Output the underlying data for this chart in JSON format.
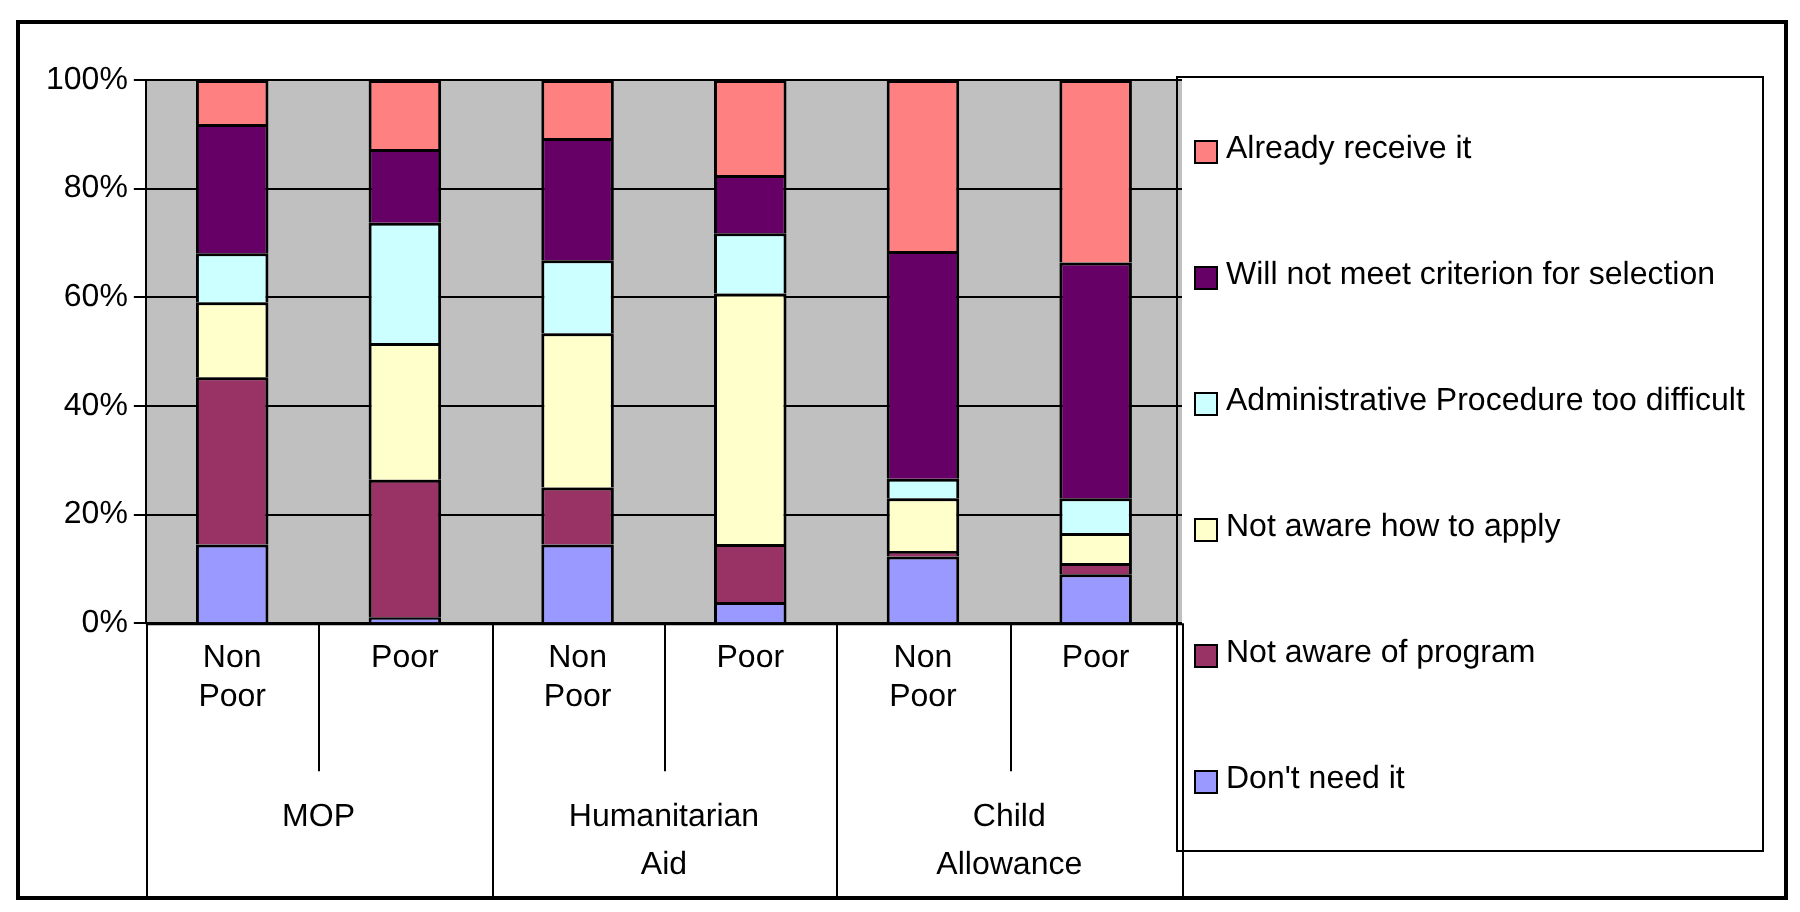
{
  "chart_data": {
    "type": "bar",
    "stacked": true,
    "categories": [
      "Non Poor",
      "Poor",
      "Non Poor",
      "Poor",
      "Non Poor",
      "Poor"
    ],
    "annotations": [
      "MOP",
      "Humanitarian Aid",
      "Child Allowance"
    ],
    "series": [
      {
        "name": "Don't need it",
        "color": "#9999ff",
        "values": [
          14.5,
          1.1,
          14.5,
          3.9,
          12.3,
          9.0
        ]
      },
      {
        "name": "Not aware of program",
        "color": "#993366",
        "values": [
          30.8,
          25.3,
          10.5,
          10.7,
          1.0,
          2.1
        ]
      },
      {
        "name": "Not aware how to apply",
        "color": "#ffffcc",
        "values": [
          13.8,
          25.2,
          28.4,
          46.1,
          9.7,
          5.5
        ]
      },
      {
        "name": "Administrative Procedure too difficult",
        "color": "#ccffff",
        "values": [
          9.0,
          22.1,
          13.4,
          11.1,
          3.6,
          6.4
        ]
      },
      {
        "name": "Will not meet criterion for selection",
        "color": "#660066",
        "values": [
          23.8,
          13.6,
          22.5,
          10.7,
          41.9,
          43.4
        ]
      },
      {
        "name": "Already receive it",
        "color": "#ff8080",
        "values": [
          8.1,
          12.7,
          10.7,
          17.5,
          31.5,
          33.6
        ]
      }
    ],
    "ylim": [
      0,
      100
    ],
    "yticks": [
      {
        "value": 0,
        "label": "0%"
      },
      {
        "value": 20,
        "label": "20%"
      },
      {
        "value": 40,
        "label": "40%"
      },
      {
        "value": 60,
        "label": "60%"
      },
      {
        "value": 80,
        "label": "80%"
      },
      {
        "value": 100,
        "label": "100%"
      }
    ],
    "grid": "y",
    "legend": "right"
  }
}
